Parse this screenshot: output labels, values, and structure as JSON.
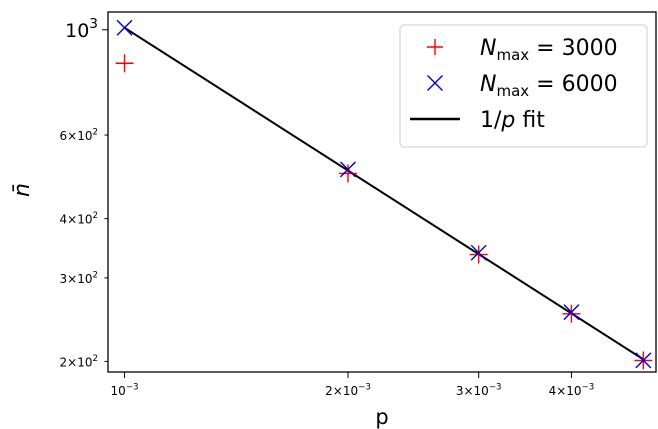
{
  "chart_data": {
    "type": "scatter",
    "xlabel": "p",
    "ylabel": "n̄",
    "xscale": "log",
    "yscale": "log",
    "xlim": [
      0.00095,
      0.0052
    ],
    "ylim": [
      190,
      1090
    ],
    "grid": false,
    "legend_position": "top-right",
    "x_ticks": [
      {
        "value": 0.001,
        "mantissa": "",
        "exp": "−3"
      },
      {
        "value": 0.002,
        "mantissa": "2",
        "exp": "−3"
      },
      {
        "value": 0.003,
        "mantissa": "3",
        "exp": "−3"
      },
      {
        "value": 0.004,
        "mantissa": "4",
        "exp": "−3"
      }
    ],
    "y_ticks": [
      {
        "value": 1000,
        "mantissa": "",
        "exp": "3",
        "major": true
      },
      {
        "value": 600,
        "mantissa": "6",
        "exp": "2",
        "major": false
      },
      {
        "value": 400,
        "mantissa": "4",
        "exp": "2",
        "major": false
      },
      {
        "value": 300,
        "mantissa": "3",
        "exp": "2",
        "major": false
      },
      {
        "value": 200,
        "mantissa": "2",
        "exp": "2",
        "major": false
      }
    ],
    "series": [
      {
        "name": "N_max = 3000",
        "legend_var": "N",
        "legend_sub": "max",
        "legend_rest": " = 3000",
        "marker": "plus",
        "color": "#ff0000",
        "x": [
          0.001,
          0.002,
          0.003,
          0.004,
          0.005
        ],
        "y": [
          850,
          498,
          336,
          252,
          201
        ]
      },
      {
        "name": "N_max = 6000",
        "legend_var": "N",
        "legend_sub": "max",
        "legend_rest": " = 6000",
        "marker": "x",
        "color": "#0000cc",
        "x": [
          0.001,
          0.002,
          0.003,
          0.004,
          0.005
        ],
        "y": [
          1010,
          508,
          339,
          254,
          201
        ]
      },
      {
        "name": "1/p fit",
        "legend_prefix": "1/",
        "legend_var": "p",
        "legend_rest": " fit",
        "marker": "line",
        "color": "#000000",
        "x": [
          0.001,
          0.005
        ],
        "y": [
          1010,
          202
        ]
      }
    ]
  }
}
